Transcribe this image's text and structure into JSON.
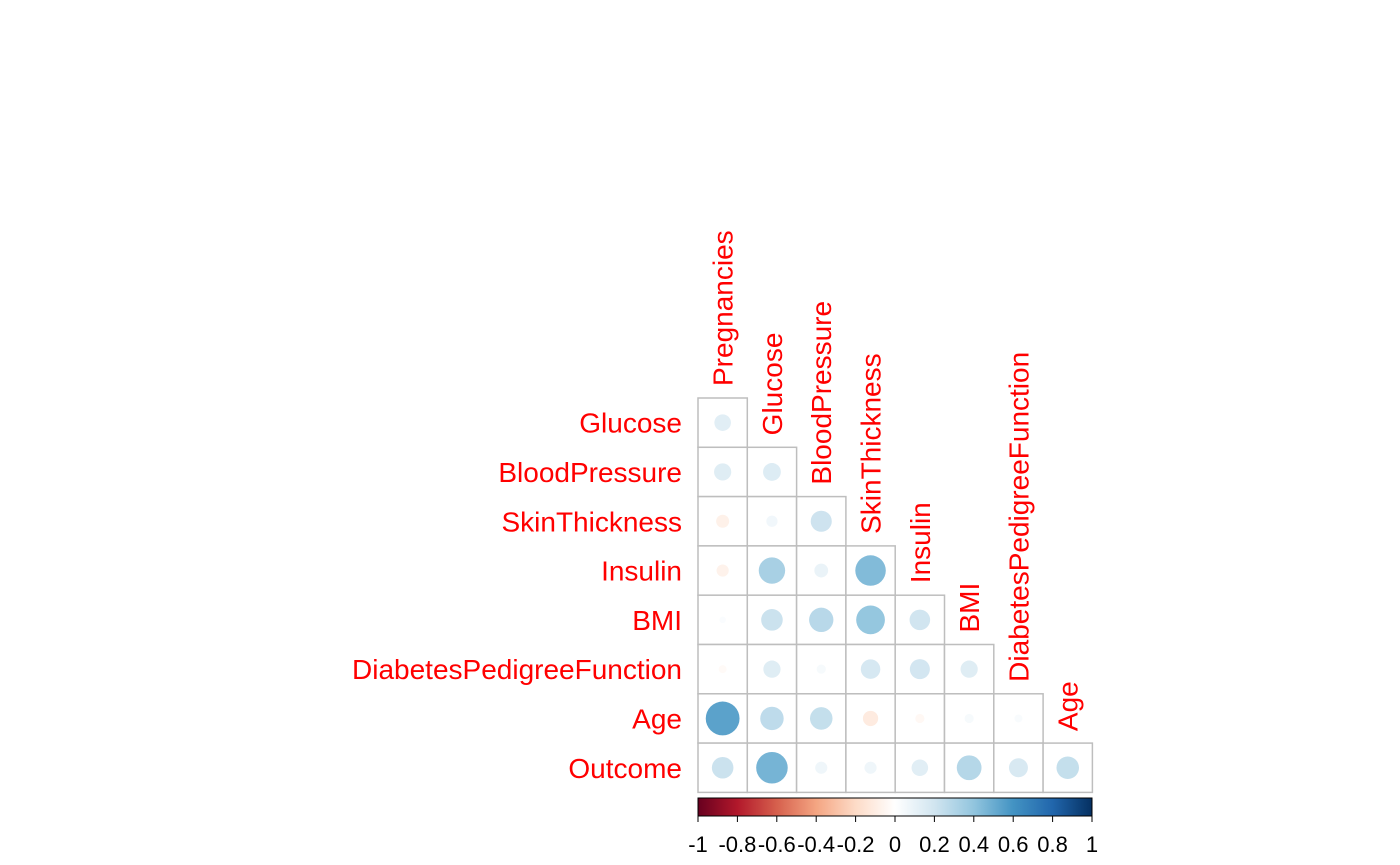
{
  "chart_data": {
    "type": "heatmap",
    "style": "corrplot-circle-lower",
    "title": "",
    "row_labels": [
      "Glucose",
      "BloodPressure",
      "SkinThickness",
      "Insulin",
      "BMI",
      "DiabetesPedigreeFunction",
      "Age",
      "Outcome"
    ],
    "col_labels": [
      "Pregnancies",
      "Glucose",
      "BloodPressure",
      "SkinThickness",
      "Insulin",
      "BMI",
      "DiabetesPedigreeFunction",
      "Age"
    ],
    "matrix": [
      [
        0.13
      ],
      [
        0.14,
        0.15
      ],
      [
        -0.08,
        0.06,
        0.21
      ],
      [
        -0.07,
        0.33,
        0.09,
        0.44
      ],
      [
        0.02,
        0.22,
        0.28,
        0.39,
        0.2
      ],
      [
        -0.03,
        0.14,
        0.04,
        0.18,
        0.19,
        0.14
      ],
      [
        0.54,
        0.26,
        0.24,
        -0.11,
        -0.04,
        0.04,
        0.03
      ],
      [
        0.22,
        0.47,
        0.07,
        0.07,
        0.13,
        0.29,
        0.17,
        0.24
      ]
    ],
    "legend": {
      "position": "bottom",
      "range": [
        -1,
        1
      ],
      "ticks": [
        "-1",
        "-0.8",
        "-0.6",
        "-0.4",
        "-0.2",
        "0",
        "0.2",
        "0.4",
        "0.6",
        "0.8",
        "1"
      ],
      "colors": [
        "#67001F",
        "#B2182B",
        "#D6604D",
        "#F4A582",
        "#FDDBC7",
        "#FFFFFF",
        "#D1E5F0",
        "#92C5DE",
        "#4393C3",
        "#2166AC",
        "#053061"
      ]
    },
    "label_color": "#FF0000",
    "grid_color": "#BEBEBE"
  }
}
